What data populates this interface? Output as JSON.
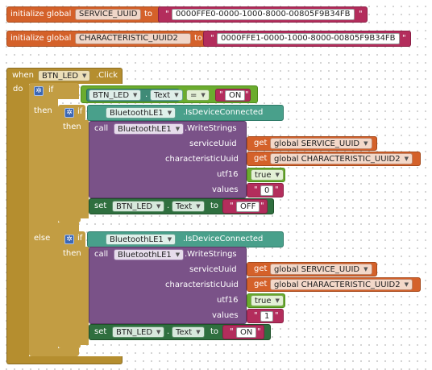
{
  "globals": [
    {
      "keyword": "initialize global",
      "name": "SERVICE_UUID",
      "to": "to",
      "value": "0000FFE0-0000-1000-8000-00805F9B34FB"
    },
    {
      "keyword": "initialize global",
      "name": "CHARACTERISTIC_UUID2",
      "to": "to",
      "value": "0000FFE1-0000-1000-8000-00805F9B34FB"
    }
  ],
  "event": {
    "when": "when",
    "component": "BTN_LED",
    "event": ".Click",
    "do": "do"
  },
  "ctrl": {
    "if": "if",
    "then": "then",
    "else": "else",
    "eq": "=",
    "on": "ON",
    "off": "OFF"
  },
  "getter": {
    "component": "BTN_LED",
    "prop": "Text"
  },
  "branches": [
    {
      "cond_component": "BluetoothLE1",
      "cond_prop": ".IsDeviceConnected",
      "call": "call",
      "call_component": "BluetoothLE1",
      "method": ".WriteStrings",
      "args": [
        {
          "label": "serviceUuid",
          "get": "get",
          "value": "global SERVICE_UUID"
        },
        {
          "label": "characteristicUuid",
          "get": "get",
          "value": "global CHARACTERISTIC_UUID2"
        },
        {
          "label": "utf16",
          "value": "true"
        },
        {
          "label": "values",
          "value": "0"
        }
      ],
      "set": "set",
      "set_component": "BTN_LED",
      "set_prop": "Text",
      "set_to": "to",
      "set_value": "OFF"
    },
    {
      "cond_component": "BluetoothLE1",
      "cond_prop": ".IsDeviceConnected",
      "call": "call",
      "call_component": "BluetoothLE1",
      "method": ".WriteStrings",
      "args": [
        {
          "label": "serviceUuid",
          "get": "get",
          "value": "global SERVICE_UUID"
        },
        {
          "label": "characteristicUuid",
          "get": "get",
          "value": "global CHARACTERISTIC_UUID2"
        },
        {
          "label": "utf16",
          "value": "true"
        },
        {
          "label": "values",
          "value": "1"
        }
      ],
      "set": "set",
      "set_component": "BTN_LED",
      "set_prop": "Text",
      "set_to": "to",
      "set_value": "ON"
    }
  ]
}
